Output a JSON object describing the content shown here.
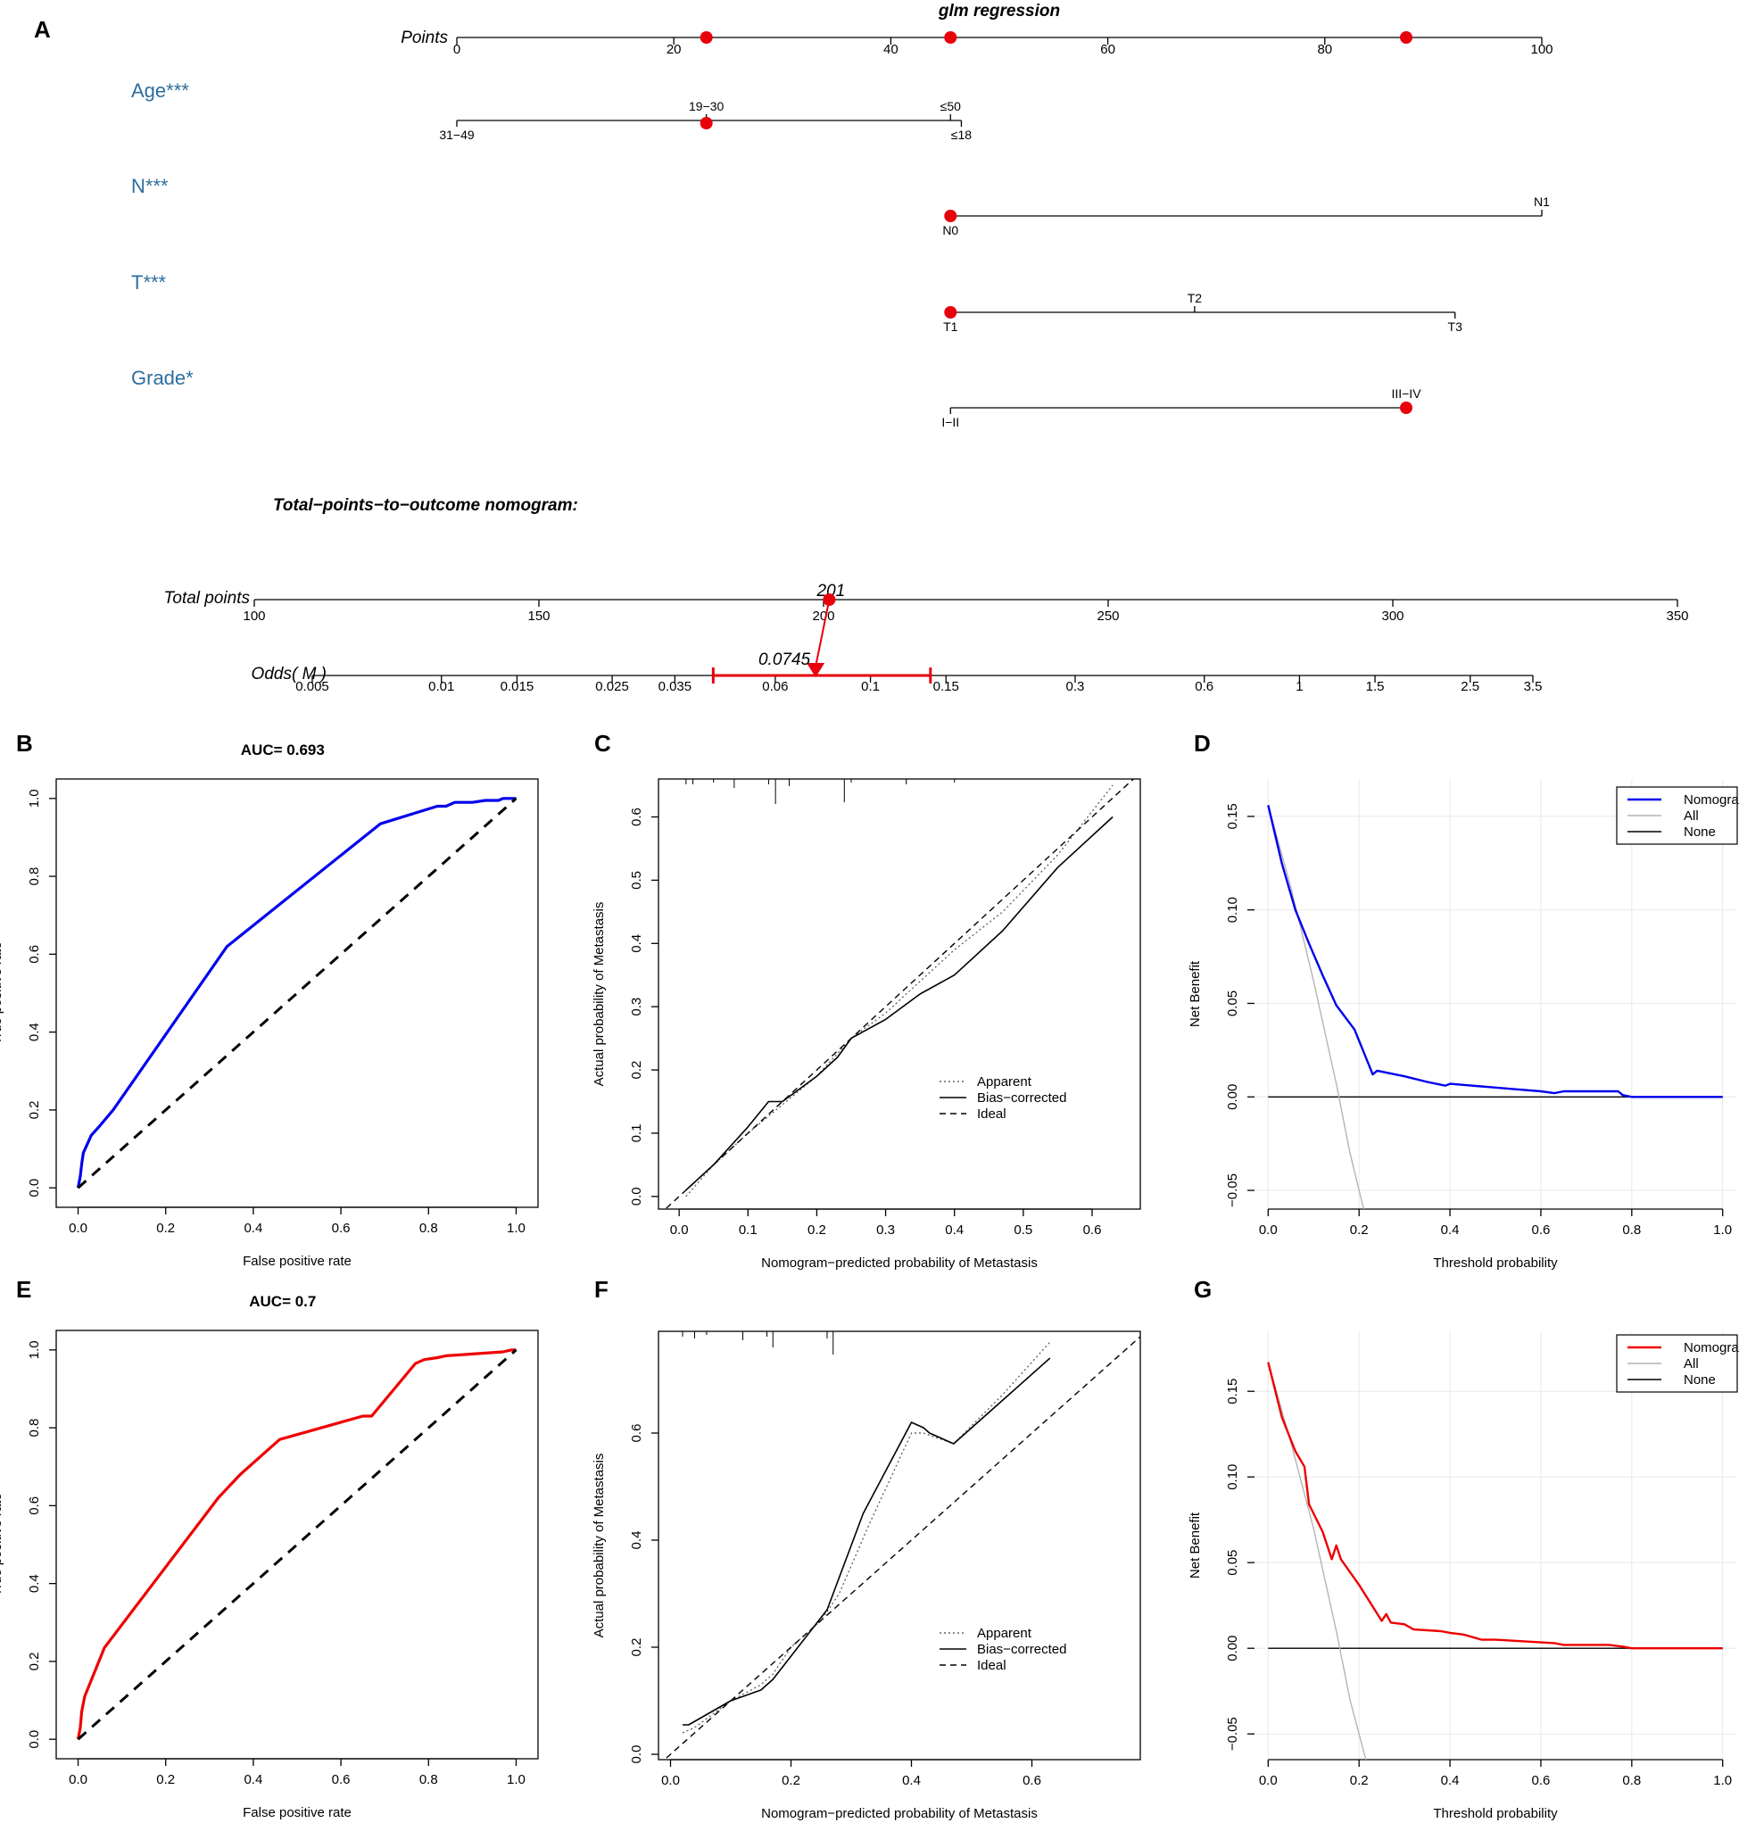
{
  "panel_letters": [
    "A",
    "B",
    "C",
    "D",
    "E",
    "F",
    "G"
  ],
  "chart_data": [
    {
      "panel": "A",
      "type": "nomogram",
      "title": "glm regression",
      "points_axis": {
        "label": "Points",
        "ticks": [
          0,
          20,
          40,
          60,
          80,
          100
        ]
      },
      "variables": [
        {
          "name": "Age***",
          "levels": [
            {
              "label": "31−49",
              "points": 0,
              "side": "below"
            },
            {
              "label": "19−30",
              "points": 23,
              "side": "above"
            },
            {
              "label": "≤50",
              "points": 45.5,
              "side": "above"
            },
            {
              "label": "≤18",
              "points": 46.5,
              "side": "below"
            }
          ],
          "selected_points": 23
        },
        {
          "name": "N***",
          "levels": [
            {
              "label": "N0",
              "points": 45.5,
              "side": "below"
            },
            {
              "label": "N1",
              "points": 100,
              "side": "above"
            }
          ],
          "selected_points": 45.5
        },
        {
          "name": "T***",
          "levels": [
            {
              "label": "T1",
              "points": 45.5,
              "side": "below"
            },
            {
              "label": "T2",
              "points": 68,
              "side": "above"
            },
            {
              "label": "T3",
              "points": 92,
              "side": "below"
            }
          ],
          "selected_points": 45.5
        },
        {
          "name": "Grade*",
          "levels": [
            {
              "label": "I−II",
              "points": 45.5,
              "side": "below"
            },
            {
              "label": "III−IV",
              "points": 87.5,
              "side": "above"
            }
          ],
          "selected_points": 87.5
        }
      ],
      "points_axis_markers": [
        23,
        45.5,
        87.5
      ],
      "subtitle": "Total−points−to−outcome nomogram:",
      "total_points_axis": {
        "label": "Total points",
        "range": [
          100,
          350
        ],
        "ticks": [
          100,
          150,
          200,
          250,
          300,
          350
        ]
      },
      "total_points_value": 201,
      "total_points_value_label": "201",
      "odds_axis": {
        "label": "Odds( M )",
        "ticks": [
          0.005,
          0.01,
          0.015,
          0.025,
          0.035,
          0.06,
          0.1,
          0.15,
          0.3,
          0.6,
          1,
          1.5,
          2.5,
          3.5
        ],
        "tick_labels": [
          "0.005",
          "0.01",
          "0.015",
          "0.025",
          "0.035",
          "0.06",
          "0.1",
          "0.15",
          "0.3",
          "0.6",
          "1",
          "1.5",
          "2.5",
          "3.5"
        ]
      },
      "odds_value": 0.0745,
      "odds_value_label": "0.0745",
      "odds_ci": [
        0.043,
        0.138
      ],
      "marker_color": "#e8000b"
    },
    {
      "panel": "B",
      "type": "line",
      "title": "AUC= 0.693",
      "xlabel": "False positive rate",
      "ylabel": "True positive rate",
      "xlim": [
        0,
        1
      ],
      "ylim": [
        0,
        1
      ],
      "ticks": [
        0,
        0.2,
        0.4,
        0.6,
        0.8,
        1
      ],
      "tick_labels": [
        "0.0",
        "0.2",
        "0.4",
        "0.6",
        "0.8",
        "1.0"
      ],
      "series": [
        {
          "name": "ROC",
          "color": "#0000ee",
          "x": [
            0,
            0.005,
            0.008,
            0.012,
            0.02,
            0.03,
            0.05,
            0.08,
            0.34,
            0.69,
            0.82,
            0.84,
            0.86,
            0.9,
            0.93,
            0.96,
            0.97,
            1.0
          ],
          "y": [
            0,
            0.03,
            0.06,
            0.09,
            0.11,
            0.135,
            0.16,
            0.2,
            0.62,
            0.935,
            0.98,
            0.98,
            0.99,
            0.99,
            0.995,
            0.995,
            1.0,
            1.0
          ]
        },
        {
          "name": "Reference",
          "color": "#000000",
          "dashed": true,
          "x": [
            0,
            1
          ],
          "y": [
            0,
            1
          ]
        }
      ]
    },
    {
      "panel": "C",
      "type": "line",
      "xlabel": "Nomogram−predicted probability of Metastasis",
      "ylabel": "Actual probability of Metastasis",
      "xlim": [
        -0.03,
        0.67
      ],
      "ylim": [
        -0.02,
        0.66
      ],
      "xticks": [
        0,
        0.1,
        0.2,
        0.3,
        0.4,
        0.5,
        0.6
      ],
      "xtick_labels": [
        "0.0",
        "0.1",
        "0.2",
        "0.3",
        "0.4",
        "0.5",
        "0.6"
      ],
      "yticks": [
        0,
        0.1,
        0.2,
        0.3,
        0.4,
        0.5,
        0.6
      ],
      "ytick_labels": [
        "0.0",
        "0.1",
        "0.2",
        "0.3",
        "0.4",
        "0.5",
        "0.6"
      ],
      "legend": [
        "Apparent",
        "Bias−corrected",
        "Ideal"
      ],
      "series": [
        {
          "name": "Apparent",
          "style": "dotted",
          "x": [
            0.01,
            0.05,
            0.1,
            0.15,
            0.2,
            0.25,
            0.3,
            0.35,
            0.4,
            0.47,
            0.55,
            0.63
          ],
          "y": [
            0,
            0.05,
            0.1,
            0.145,
            0.19,
            0.25,
            0.29,
            0.34,
            0.39,
            0.45,
            0.54,
            0.65
          ]
        },
        {
          "name": "Bias−corrected",
          "style": "solid",
          "x": [
            0.01,
            0.05,
            0.1,
            0.13,
            0.15,
            0.2,
            0.23,
            0.25,
            0.3,
            0.35,
            0.4,
            0.47,
            0.55,
            0.63
          ],
          "y": [
            0.01,
            0.05,
            0.11,
            0.15,
            0.15,
            0.19,
            0.22,
            0.25,
            0.28,
            0.32,
            0.35,
            0.42,
            0.52,
            0.6
          ]
        },
        {
          "name": "Ideal",
          "style": "dashed",
          "x": [
            -0.03,
            0.67
          ],
          "y": [
            -0.03,
            0.67
          ]
        }
      ],
      "rug_x": [
        0.01,
        0.02,
        0.05,
        0.08,
        0.13,
        0.14,
        0.16,
        0.24,
        0.25,
        0.33,
        0.4
      ]
    },
    {
      "panel": "D",
      "type": "line",
      "xlabel": "Threshold probability",
      "ylabel": "Net Benefit",
      "xlim": [
        0,
        1
      ],
      "ylim": [
        -0.06,
        0.17
      ],
      "xticks": [
        0,
        0.2,
        0.4,
        0.6,
        0.8,
        1
      ],
      "xtick_labels": [
        "0.0",
        "0.2",
        "0.4",
        "0.6",
        "0.8",
        "1.0"
      ],
      "yticks": [
        -0.05,
        0,
        0.05,
        0.1,
        0.15
      ],
      "ytick_labels": [
        "−0.05",
        "0.00",
        "0.05",
        "0.10",
        "0.15"
      ],
      "grid": true,
      "legend": [
        "Nomogram",
        "All",
        "None"
      ],
      "series": [
        {
          "name": "Nomogram",
          "color": "#0000ee",
          "x": [
            0,
            0.03,
            0.06,
            0.09,
            0.12,
            0.15,
            0.19,
            0.23,
            0.24,
            0.3,
            0.35,
            0.39,
            0.4,
            0.45,
            0.5,
            0.55,
            0.6,
            0.63,
            0.65,
            0.7,
            0.77,
            0.78,
            0.8,
            1.0
          ],
          "y": [
            0.156,
            0.125,
            0.1,
            0.082,
            0.065,
            0.049,
            0.036,
            0.012,
            0.014,
            0.011,
            0.008,
            0.006,
            0.007,
            0.006,
            0.005,
            0.004,
            0.003,
            0.002,
            0.003,
            0.003,
            0.003,
            0.001,
            0.0,
            0.0
          ]
        },
        {
          "name": "All",
          "color": "#b4b4b4",
          "x": [
            0,
            0.05,
            0.1,
            0.15,
            0.18,
            0.21
          ],
          "y": [
            0.156,
            0.112,
            0.062,
            0.007,
            -0.03,
            -0.06
          ]
        },
        {
          "name": "None",
          "color": "#000000",
          "x": [
            0,
            1
          ],
          "y": [
            0,
            0
          ]
        }
      ]
    },
    {
      "panel": "E",
      "type": "line",
      "title": "AUC= 0.7",
      "xlabel": "False positive rate",
      "ylabel": "True positive rate",
      "xlim": [
        0,
        1
      ],
      "ylim": [
        0,
        1
      ],
      "ticks": [
        0,
        0.2,
        0.4,
        0.6,
        0.8,
        1
      ],
      "tick_labels": [
        "0.0",
        "0.2",
        "0.4",
        "0.6",
        "0.8",
        "1.0"
      ],
      "series": [
        {
          "name": "ROC",
          "color": "#ee0000",
          "x": [
            0,
            0.005,
            0.008,
            0.015,
            0.06,
            0.32,
            0.37,
            0.46,
            0.65,
            0.67,
            0.77,
            0.79,
            0.82,
            0.84,
            0.97,
            0.99,
            1.0
          ],
          "y": [
            0,
            0.03,
            0.07,
            0.11,
            0.235,
            0.62,
            0.68,
            0.77,
            0.83,
            0.83,
            0.965,
            0.975,
            0.98,
            0.985,
            0.995,
            1.0,
            1.0
          ]
        },
        {
          "name": "Reference",
          "color": "#000000",
          "dashed": true,
          "x": [
            0,
            1
          ],
          "y": [
            0,
            1
          ]
        }
      ]
    },
    {
      "panel": "F",
      "type": "line",
      "xlabel": "Nomogram−predicted probability of Metastasis",
      "ylabel": "Actual probability of Metastasis",
      "xlim": [
        -0.02,
        0.78
      ],
      "ylim": [
        -0.01,
        0.79
      ],
      "xticks": [
        0,
        0.2,
        0.4,
        0.6
      ],
      "xtick_labels": [
        "0.0",
        "0.2",
        "0.4",
        "0.6"
      ],
      "yticks": [
        0,
        0.2,
        0.4,
        0.6
      ],
      "ytick_labels": [
        "0.0",
        "0.2",
        "0.4",
        "0.6"
      ],
      "legend": [
        "Apparent",
        "Bias−corrected",
        "Ideal"
      ],
      "series": [
        {
          "name": "Apparent",
          "style": "dotted",
          "x": [
            0.02,
            0.04,
            0.1,
            0.15,
            0.17,
            0.2,
            0.25,
            0.28,
            0.33,
            0.4,
            0.42,
            0.47,
            0.55,
            0.63
          ],
          "y": [
            0.04,
            0.05,
            0.1,
            0.13,
            0.15,
            0.2,
            0.25,
            0.3,
            0.43,
            0.6,
            0.6,
            0.58,
            0.67,
            0.77
          ]
        },
        {
          "name": "Bias−corrected",
          "style": "solid",
          "x": [
            0.02,
            0.03,
            0.1,
            0.15,
            0.17,
            0.26,
            0.32,
            0.4,
            0.42,
            0.43,
            0.47,
            0.55,
            0.63
          ],
          "y": [
            0.055,
            0.055,
            0.1,
            0.12,
            0.14,
            0.27,
            0.45,
            0.62,
            0.61,
            0.6,
            0.58,
            0.66,
            0.74
          ]
        },
        {
          "name": "Ideal",
          "style": "dashed",
          "x": [
            -0.02,
            0.78
          ],
          "y": [
            -0.02,
            0.78
          ]
        }
      ],
      "rug_x": [
        0.02,
        0.04,
        0.06,
        0.12,
        0.16,
        0.17,
        0.26,
        0.27
      ]
    },
    {
      "panel": "G",
      "type": "line",
      "xlabel": "Threshold probability",
      "ylabel": "Net Benefit",
      "xlim": [
        0,
        1
      ],
      "ylim": [
        -0.065,
        0.185
      ],
      "xticks": [
        0,
        0.2,
        0.4,
        0.6,
        0.8,
        1
      ],
      "xtick_labels": [
        "0.0",
        "0.2",
        "0.4",
        "0.6",
        "0.8",
        "1.0"
      ],
      "yticks": [
        -0.05,
        0,
        0.05,
        0.1,
        0.15
      ],
      "ytick_labels": [
        "−0.05",
        "0.00",
        "0.05",
        "0.10",
        "0.15"
      ],
      "grid": true,
      "legend": [
        "Nomogram",
        "All",
        "None"
      ],
      "series": [
        {
          "name": "Nomogram",
          "color": "#ee0000",
          "x": [
            0,
            0.03,
            0.06,
            0.08,
            0.09,
            0.12,
            0.14,
            0.15,
            0.16,
            0.2,
            0.25,
            0.26,
            0.27,
            0.3,
            0.32,
            0.38,
            0.4,
            0.43,
            0.47,
            0.5,
            0.63,
            0.65,
            0.75,
            0.78,
            0.8,
            1.0
          ],
          "y": [
            0.167,
            0.135,
            0.115,
            0.106,
            0.084,
            0.068,
            0.052,
            0.06,
            0.052,
            0.037,
            0.016,
            0.02,
            0.015,
            0.014,
            0.011,
            0.01,
            0.009,
            0.008,
            0.005,
            0.005,
            0.003,
            0.002,
            0.002,
            0.001,
            0.0,
            0.0
          ]
        },
        {
          "name": "All",
          "color": "#b4b4b4",
          "x": [
            0,
            0.05,
            0.1,
            0.15,
            0.18,
            0.215
          ],
          "y": [
            0.167,
            0.12,
            0.07,
            0.01,
            -0.03,
            -0.065
          ]
        },
        {
          "name": "None",
          "color": "#000000",
          "x": [
            0,
            1
          ],
          "y": [
            0,
            0
          ]
        }
      ]
    }
  ]
}
